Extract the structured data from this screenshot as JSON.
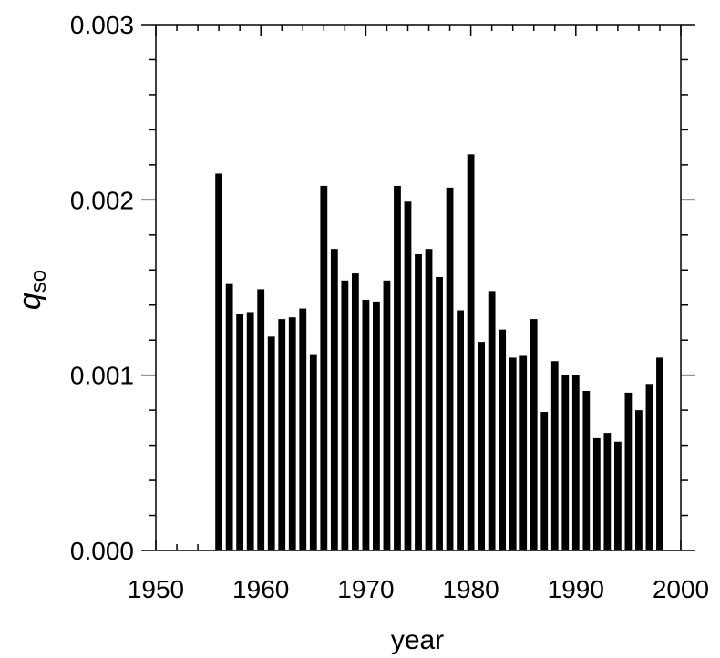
{
  "chart_data": {
    "type": "bar",
    "title": "",
    "xlabel": "year",
    "ylabel_symbol": "q",
    "ylabel_subscript": "so",
    "xlim": [
      1950,
      2000
    ],
    "ylim": [
      0.0,
      0.003
    ],
    "xticks": [
      1950,
      1960,
      1970,
      1980,
      1990,
      2000
    ],
    "xtick_labels": [
      "1950",
      "1960",
      "1970",
      "1980",
      "1990",
      "2000"
    ],
    "yticks": [
      0.0,
      0.001,
      0.002,
      0.003
    ],
    "ytick_labels": [
      "0.000",
      "0.001",
      "0.002",
      "0.003"
    ],
    "grid": false,
    "legend": "none",
    "bar_color": "#000000",
    "x": [
      1956,
      1957,
      1958,
      1959,
      1960,
      1961,
      1962,
      1963,
      1964,
      1965,
      1966,
      1967,
      1968,
      1969,
      1970,
      1971,
      1972,
      1973,
      1974,
      1975,
      1976,
      1977,
      1978,
      1979,
      1980,
      1981,
      1982,
      1983,
      1984,
      1985,
      1986,
      1987,
      1988,
      1989,
      1990,
      1991,
      1992,
      1993,
      1994,
      1995,
      1996,
      1997,
      1998
    ],
    "values": [
      0.00215,
      0.00152,
      0.00135,
      0.00136,
      0.00149,
      0.00122,
      0.00132,
      0.00133,
      0.00138,
      0.00112,
      0.00208,
      0.00172,
      0.00154,
      0.00158,
      0.00143,
      0.00142,
      0.00154,
      0.00208,
      0.00199,
      0.00169,
      0.00172,
      0.00156,
      0.00207,
      0.00137,
      0.00226,
      0.00119,
      0.00148,
      0.00126,
      0.0011,
      0.00111,
      0.00132,
      0.00079,
      0.00108,
      0.001,
      0.001,
      0.00091,
      0.00064,
      0.00067,
      0.00062,
      0.0009,
      0.0008,
      0.00095,
      0.0011
    ]
  }
}
